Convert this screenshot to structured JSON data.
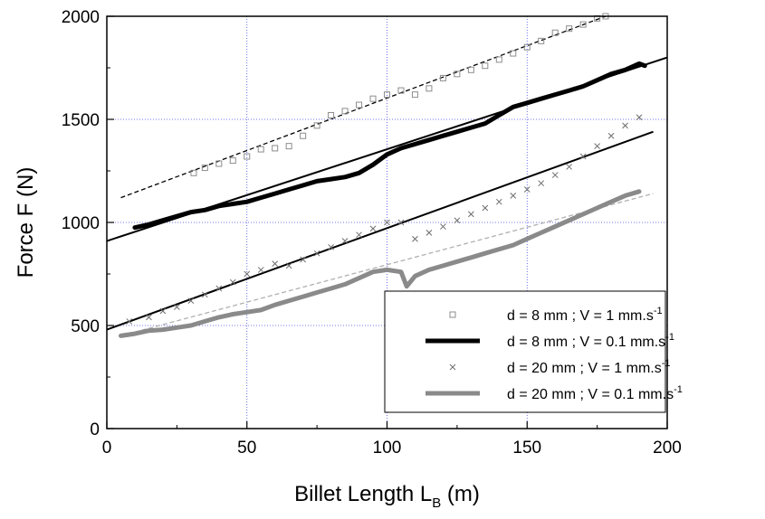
{
  "chart_data": {
    "type": "scatter",
    "xlabel": "Billet Length L",
    "xlabel_sub": "B",
    "xlabel_unit": " (m)",
    "ylabel": "Force F (N)",
    "xlim": [
      0,
      200
    ],
    "ylim": [
      0,
      2000
    ],
    "x_ticks": [
      "0",
      "50",
      "100",
      "150",
      "200"
    ],
    "y_ticks": [
      "0",
      "500",
      "1000",
      "1500",
      "2000"
    ],
    "grid": "dotted blue at 50 m and 500 N steps",
    "legend_position": "bottom-right",
    "series": [
      {
        "name": "d = 8 mm ; V = 1 mm.s",
        "name_sup": "-1",
        "marker": "open-square",
        "color": "#8c8c8c",
        "x": [
          31,
          35,
          40,
          45,
          50,
          55,
          60,
          65,
          70,
          75,
          80,
          85,
          90,
          95,
          100,
          105,
          110,
          115,
          120,
          125,
          130,
          135,
          140,
          145,
          150,
          155,
          160,
          165,
          170,
          175,
          178
        ],
        "y": [
          1240,
          1265,
          1285,
          1300,
          1320,
          1355,
          1360,
          1370,
          1420,
          1470,
          1520,
          1540,
          1570,
          1600,
          1620,
          1640,
          1620,
          1650,
          1700,
          1720,
          1740,
          1760,
          1790,
          1820,
          1850,
          1880,
          1920,
          1940,
          1960,
          1990,
          2000
        ]
      },
      {
        "name": "d = 8 mm ; V = 0.1 mm.s",
        "name_sup": "-1",
        "marker": "thick-line",
        "color": "#000000",
        "x": [
          10,
          15,
          20,
          25,
          30,
          35,
          40,
          45,
          50,
          55,
          60,
          65,
          70,
          75,
          80,
          85,
          90,
          95,
          100,
          105,
          110,
          115,
          120,
          125,
          130,
          135,
          140,
          145,
          150,
          155,
          160,
          165,
          170,
          175,
          180,
          185,
          190,
          192
        ],
        "y": [
          975,
          990,
          1010,
          1030,
          1050,
          1060,
          1080,
          1090,
          1100,
          1120,
          1140,
          1160,
          1180,
          1200,
          1210,
          1220,
          1240,
          1280,
          1330,
          1360,
          1380,
          1400,
          1420,
          1440,
          1460,
          1480,
          1520,
          1560,
          1580,
          1600,
          1620,
          1640,
          1660,
          1690,
          1720,
          1740,
          1770,
          1760
        ]
      },
      {
        "name": "d = 20 mm ; V = 1 mm.s",
        "name_sup": "-1",
        "marker": "cross",
        "color": "#6e6e6e",
        "x": [
          8,
          15,
          20,
          25,
          30,
          35,
          40,
          45,
          50,
          55,
          60,
          65,
          70,
          75,
          80,
          85,
          90,
          95,
          100,
          105,
          110,
          115,
          120,
          125,
          130,
          135,
          140,
          145,
          150,
          155,
          160,
          165,
          170,
          175,
          180,
          185,
          190
        ],
        "y": [
          520,
          540,
          570,
          590,
          620,
          650,
          680,
          710,
          750,
          770,
          800,
          790,
          820,
          850,
          880,
          910,
          940,
          970,
          1000,
          1000,
          920,
          950,
          980,
          1010,
          1040,
          1070,
          1100,
          1130,
          1160,
          1190,
          1230,
          1270,
          1320,
          1370,
          1420,
          1470,
          1510
        ]
      },
      {
        "name": "d = 20 mm ; V = 0.1 mm.s",
        "name_sup": "-1",
        "marker": "thick-line",
        "color": "#8a8a8a",
        "x": [
          5,
          10,
          15,
          20,
          25,
          30,
          35,
          40,
          45,
          50,
          55,
          60,
          65,
          70,
          75,
          80,
          85,
          90,
          95,
          100,
          105,
          107,
          110,
          115,
          120,
          125,
          130,
          135,
          140,
          145,
          150,
          155,
          160,
          165,
          170,
          175,
          180,
          185,
          190
        ],
        "y": [
          450,
          460,
          475,
          480,
          490,
          500,
          520,
          540,
          555,
          565,
          575,
          600,
          620,
          640,
          660,
          680,
          700,
          730,
          760,
          770,
          760,
          690,
          740,
          770,
          790,
          810,
          830,
          850,
          870,
          890,
          920,
          950,
          980,
          1010,
          1040,
          1070,
          1100,
          1130,
          1150
        ]
      }
    ],
    "fit_lines": [
      {
        "style": "dashed",
        "color": "#000000",
        "x": [
          5,
          178
        ],
        "y": [
          1120,
          2000
        ]
      },
      {
        "style": "solid",
        "color": "#000000",
        "x": [
          0,
          200
        ],
        "y": [
          910,
          1800
        ]
      },
      {
        "style": "solid",
        "color": "#000000",
        "x": [
          0,
          195
        ],
        "y": [
          480,
          1440
        ]
      },
      {
        "style": "dashed",
        "color": "#b0b0b0",
        "x": [
          5,
          195
        ],
        "y": [
          450,
          1140
        ]
      }
    ]
  }
}
